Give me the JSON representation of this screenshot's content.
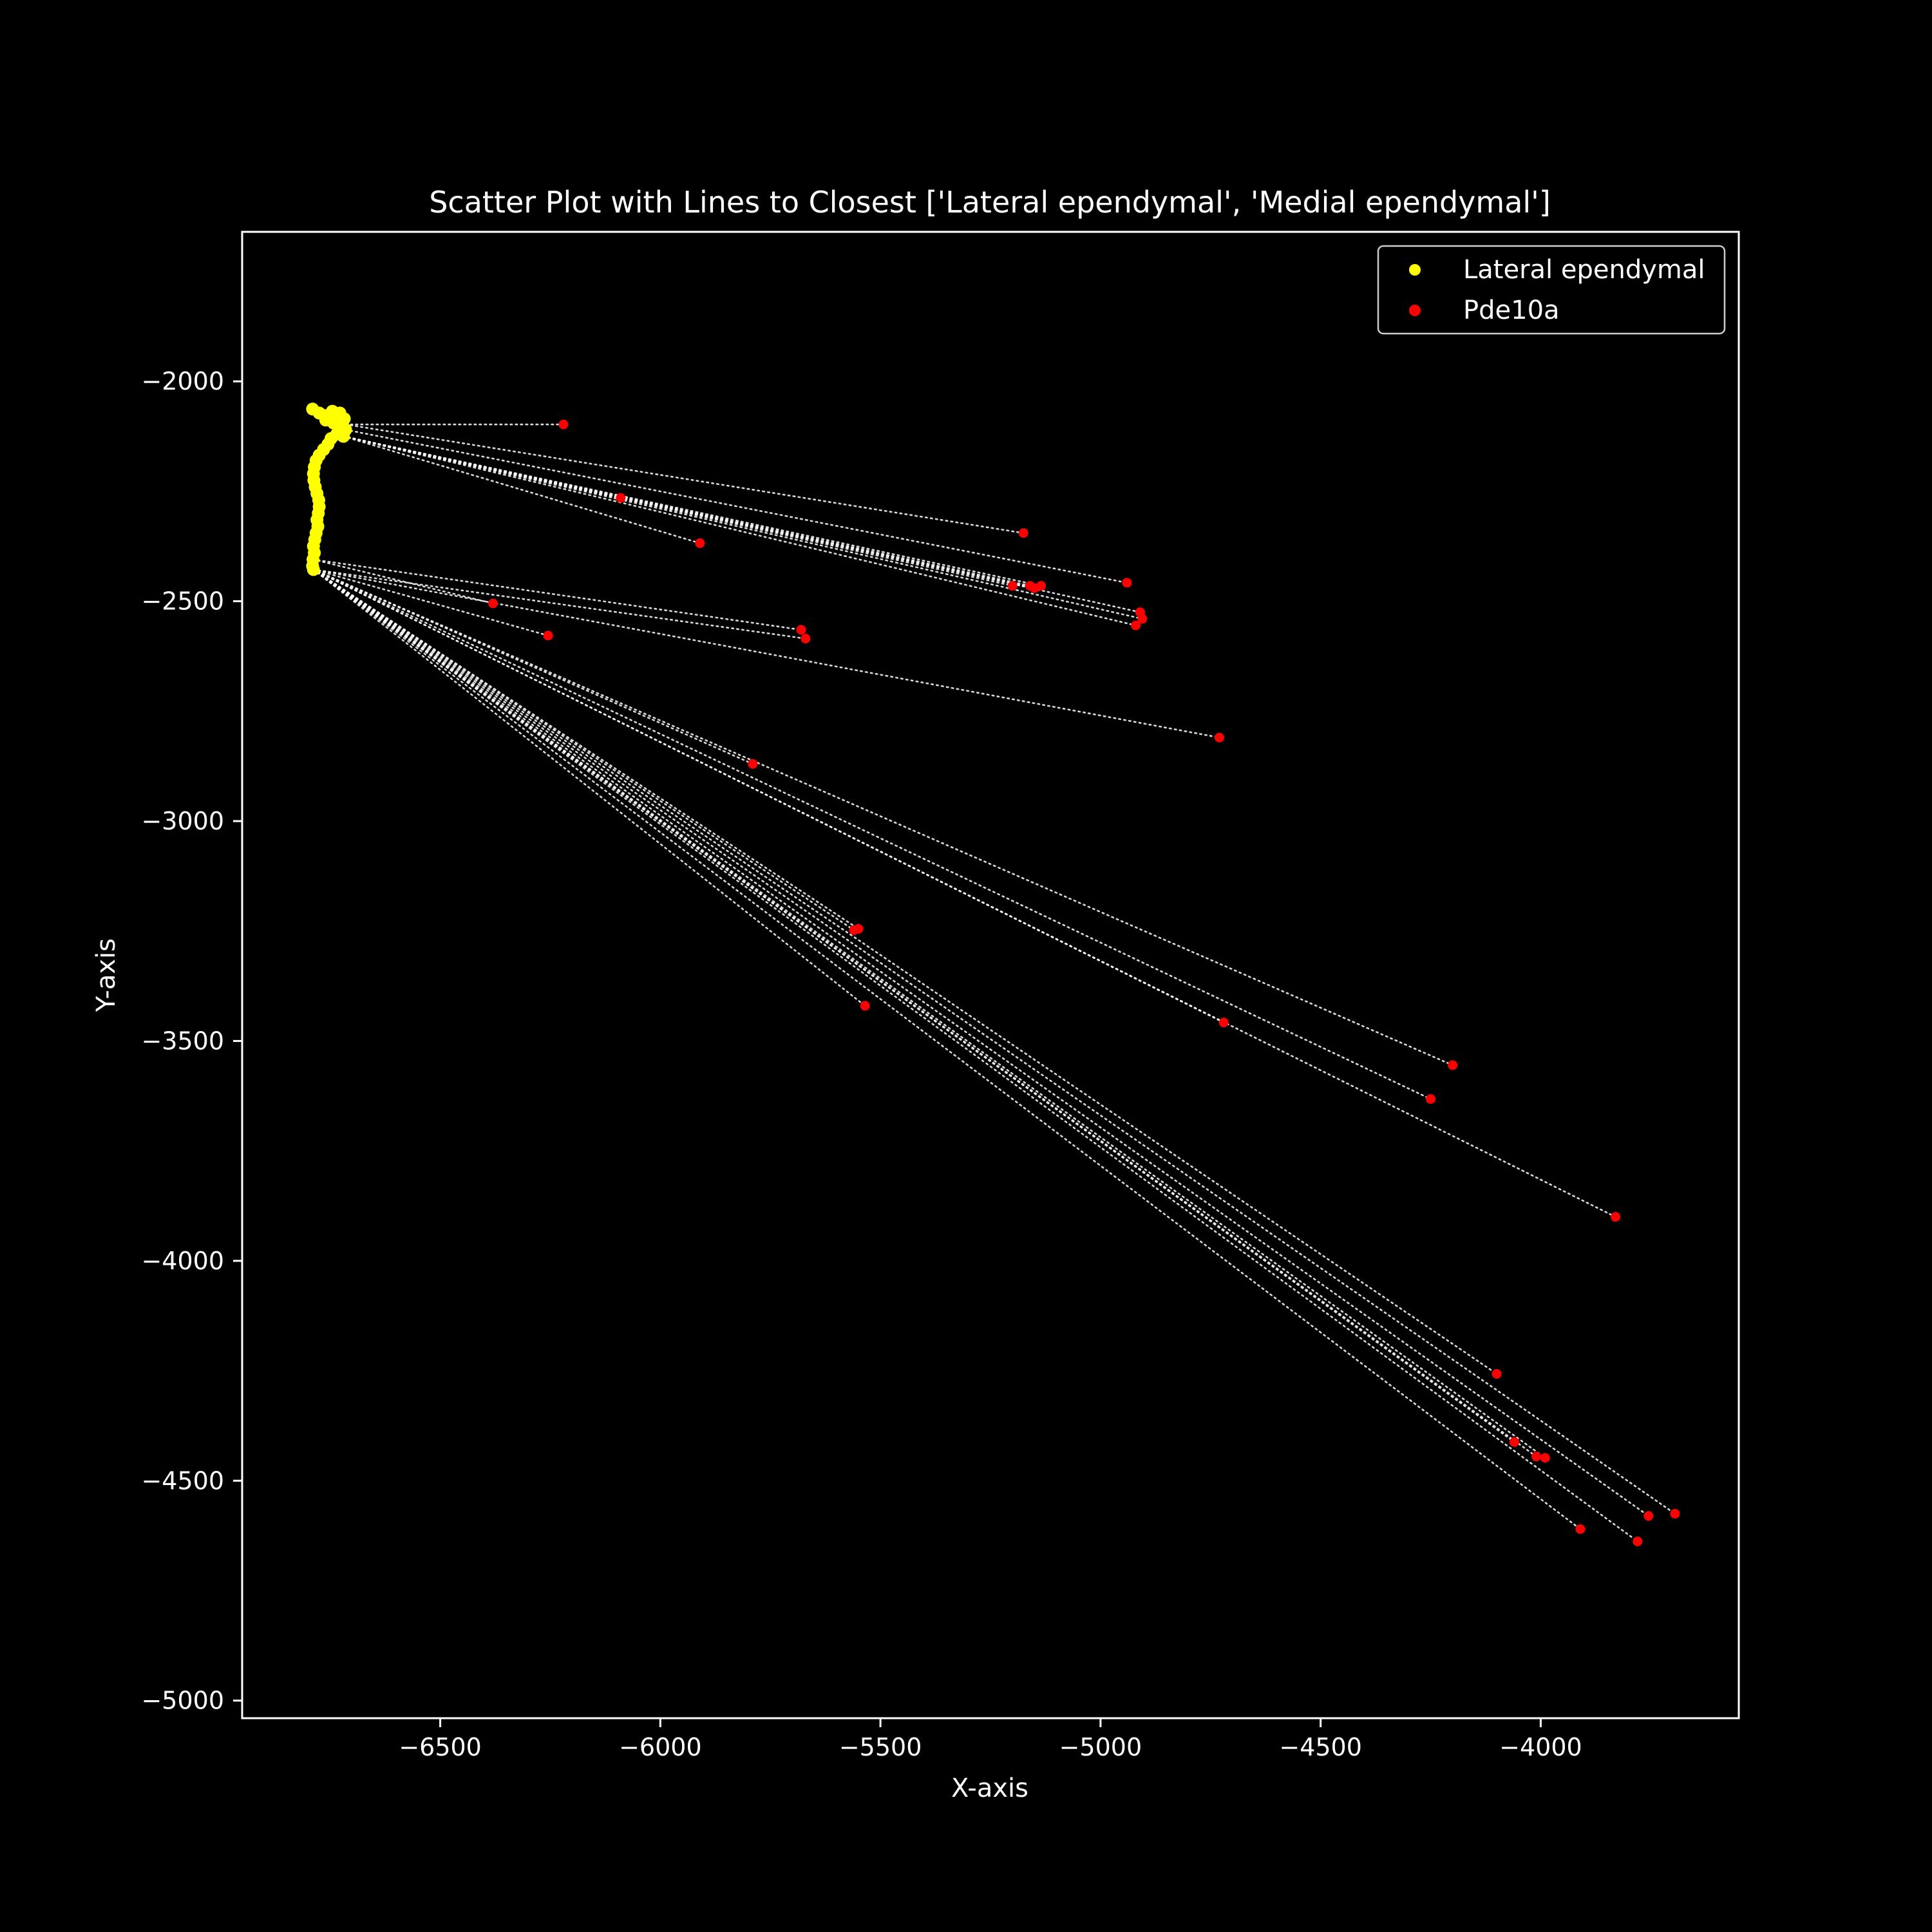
{
  "chart_data": {
    "type": "scatter",
    "title": "Scatter Plot with Lines to Closest ['Lateral ependymal', 'Medial ependymal']",
    "xlabel": "X-axis",
    "ylabel": "Y-axis",
    "xlim": [
      -6950,
      -3550
    ],
    "ylim": [
      -5040,
      -1660
    ],
    "xticks": [
      -6500,
      -6000,
      -5500,
      -5000,
      -4500,
      -4000
    ],
    "yticks": [
      -2000,
      -2500,
      -3000,
      -3500,
      -4000,
      -4500,
      -5000
    ],
    "x_tick_labels": [
      "−6500",
      "−6000",
      "−5500",
      "−5000",
      "−4500",
      "−4000"
    ],
    "y_tick_labels": [
      "−2000",
      "−2500",
      "−3000",
      "−3500",
      "−4000",
      "−4500",
      "−5000"
    ],
    "grid": false,
    "legend_position": "top-right",
    "background_color": "#000000",
    "line_color": "#ffffff",
    "series": [
      {
        "name": "Lateral ependymal",
        "color": "#ffff00",
        "points": [
          [
            -6790,
            -2063
          ],
          [
            -6775,
            -2072
          ],
          [
            -6762,
            -2078
          ],
          [
            -6745,
            -2068
          ],
          [
            -6728,
            -2072
          ],
          [
            -6718,
            -2085
          ],
          [
            -6722,
            -2098
          ],
          [
            -6715,
            -2110
          ],
          [
            -6730,
            -2105
          ],
          [
            -6742,
            -2095
          ],
          [
            -6760,
            -2088
          ],
          [
            -6720,
            -2125
          ],
          [
            -6735,
            -2120
          ],
          [
            -6748,
            -2130
          ],
          [
            -6755,
            -2143
          ],
          [
            -6765,
            -2155
          ],
          [
            -6775,
            -2168
          ],
          [
            -6782,
            -2180
          ],
          [
            -6786,
            -2195
          ],
          [
            -6788,
            -2210
          ],
          [
            -6787,
            -2225
          ],
          [
            -6784,
            -2240
          ],
          [
            -6780,
            -2255
          ],
          [
            -6776,
            -2270
          ],
          [
            -6775,
            -2285
          ],
          [
            -6777,
            -2300
          ],
          [
            -6780,
            -2315
          ],
          [
            -6778,
            -2330
          ],
          [
            -6782,
            -2345
          ],
          [
            -6785,
            -2360
          ],
          [
            -6788,
            -2375
          ],
          [
            -6786,
            -2390
          ],
          [
            -6789,
            -2405
          ],
          [
            -6790,
            -2420
          ],
          [
            -6788,
            -2428
          ]
        ]
      },
      {
        "name": "Pde10a",
        "color": "#ff0000",
        "points": [
          [
            -6220,
            -2098
          ],
          [
            -6090,
            -2265
          ],
          [
            -5910,
            -2368
          ],
          [
            -5175,
            -2345
          ],
          [
            -5200,
            -2465
          ],
          [
            -5160,
            -2465
          ],
          [
            -5150,
            -2470
          ],
          [
            -5135,
            -2465
          ],
          [
            -4940,
            -2458
          ],
          [
            -4910,
            -2525
          ],
          [
            -4905,
            -2540
          ],
          [
            -4920,
            -2555
          ],
          [
            -6380,
            -2505
          ],
          [
            -6255,
            -2578
          ],
          [
            -5680,
            -2565
          ],
          [
            -5670,
            -2585
          ],
          [
            -4730,
            -2810
          ],
          [
            -5790,
            -2870
          ],
          [
            -5560,
            -3248
          ],
          [
            -5550,
            -3245
          ],
          [
            -5535,
            -3420
          ],
          [
            -4720,
            -3458
          ],
          [
            -4200,
            -3555
          ],
          [
            -4250,
            -3632
          ],
          [
            -3830,
            -3900
          ],
          [
            -4100,
            -4257
          ],
          [
            -4060,
            -4412
          ],
          [
            -4010,
            -4445
          ],
          [
            -3990,
            -4448
          ],
          [
            -3910,
            -4610
          ],
          [
            -3780,
            -4638
          ],
          [
            -3755,
            -4580
          ],
          [
            -3695,
            -4575
          ]
        ]
      }
    ],
    "connections": [
      {
        "from": [
          -6715,
          -2098
        ],
        "to": [
          -6220,
          -2098
        ]
      },
      {
        "from": [
          -6720,
          -2125
        ],
        "to": [
          -6090,
          -2265
        ]
      },
      {
        "from": [
          -6720,
          -2125
        ],
        "to": [
          -5910,
          -2368
        ]
      },
      {
        "from": [
          -6715,
          -2098
        ],
        "to": [
          -5175,
          -2345
        ]
      },
      {
        "from": [
          -6720,
          -2125
        ],
        "to": [
          -5200,
          -2465
        ]
      },
      {
        "from": [
          -6720,
          -2125
        ],
        "to": [
          -5160,
          -2465
        ]
      },
      {
        "from": [
          -6720,
          -2125
        ],
        "to": [
          -5150,
          -2470
        ]
      },
      {
        "from": [
          -6720,
          -2125
        ],
        "to": [
          -5135,
          -2465
        ]
      },
      {
        "from": [
          -6715,
          -2110
        ],
        "to": [
          -4940,
          -2458
        ]
      },
      {
        "from": [
          -6720,
          -2125
        ],
        "to": [
          -4910,
          -2525
        ]
      },
      {
        "from": [
          -6720,
          -2125
        ],
        "to": [
          -4905,
          -2540
        ]
      },
      {
        "from": [
          -6720,
          -2125
        ],
        "to": [
          -4920,
          -2555
        ]
      },
      {
        "from": [
          -6789,
          -2405
        ],
        "to": [
          -6380,
          -2505
        ]
      },
      {
        "from": [
          -6788,
          -2428
        ],
        "to": [
          -6255,
          -2578
        ]
      },
      {
        "from": [
          -6789,
          -2405
        ],
        "to": [
          -5680,
          -2565
        ]
      },
      {
        "from": [
          -6788,
          -2428
        ],
        "to": [
          -5670,
          -2585
        ]
      },
      {
        "from": [
          -6788,
          -2428
        ],
        "to": [
          -4730,
          -2810
        ]
      },
      {
        "from": [
          -6788,
          -2428
        ],
        "to": [
          -5790,
          -2870
        ]
      },
      {
        "from": [
          -6788,
          -2428
        ],
        "to": [
          -5560,
          -3248
        ]
      },
      {
        "from": [
          -6788,
          -2428
        ],
        "to": [
          -5550,
          -3245
        ]
      },
      {
        "from": [
          -6788,
          -2428
        ],
        "to": [
          -5535,
          -3420
        ]
      },
      {
        "from": [
          -6788,
          -2428
        ],
        "to": [
          -4720,
          -3458
        ]
      },
      {
        "from": [
          -6788,
          -2428
        ],
        "to": [
          -4200,
          -3555
        ]
      },
      {
        "from": [
          -6788,
          -2428
        ],
        "to": [
          -4250,
          -3632
        ]
      },
      {
        "from": [
          -6788,
          -2428
        ],
        "to": [
          -3830,
          -3900
        ]
      },
      {
        "from": [
          -6788,
          -2428
        ],
        "to": [
          -4100,
          -4257
        ]
      },
      {
        "from": [
          -6788,
          -2428
        ],
        "to": [
          -4060,
          -4412
        ]
      },
      {
        "from": [
          -6788,
          -2428
        ],
        "to": [
          -4010,
          -4445
        ]
      },
      {
        "from": [
          -6788,
          -2428
        ],
        "to": [
          -3990,
          -4448
        ]
      },
      {
        "from": [
          -6788,
          -2428
        ],
        "to": [
          -3910,
          -4610
        ]
      },
      {
        "from": [
          -6788,
          -2428
        ],
        "to": [
          -3780,
          -4638
        ]
      },
      {
        "from": [
          -6788,
          -2428
        ],
        "to": [
          -3755,
          -4580
        ]
      },
      {
        "from": [
          -6788,
          -2428
        ],
        "to": [
          -3695,
          -4575
        ]
      }
    ]
  }
}
